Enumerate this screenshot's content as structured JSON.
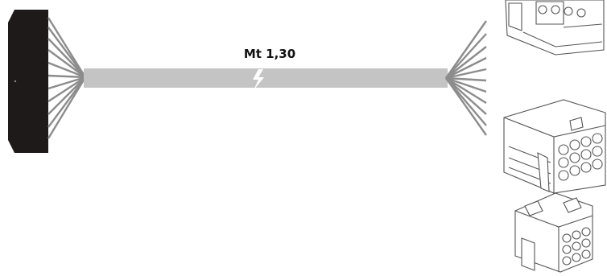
{
  "cable": {
    "length_label": "Mt 1,30",
    "color": "#c4c4c4",
    "break_symbol": "lightning-break-icon"
  },
  "left_connector": {
    "color": "#1f1a1a",
    "icon": "black-terminal-block-icon"
  },
  "right_connectors": [
    {
      "icon": "multi-pin-housing-top-icon"
    },
    {
      "icon": "twelve-pin-housing-icon"
    },
    {
      "icon": "nine-pin-housing-icon"
    }
  ],
  "wire_color": "#8c8c8c"
}
